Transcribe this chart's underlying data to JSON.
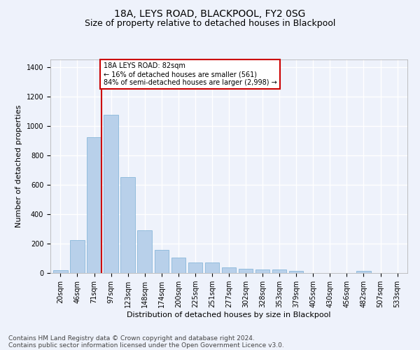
{
  "title": "18A, LEYS ROAD, BLACKPOOL, FY2 0SG",
  "subtitle": "Size of property relative to detached houses in Blackpool",
  "xlabel": "Distribution of detached houses by size in Blackpool",
  "ylabel": "Number of detached properties",
  "footer1": "Contains HM Land Registry data © Crown copyright and database right 2024.",
  "footer2": "Contains public sector information licensed under the Open Government Licence v3.0.",
  "categories": [
    "20sqm",
    "46sqm",
    "71sqm",
    "97sqm",
    "123sqm",
    "148sqm",
    "174sqm",
    "200sqm",
    "225sqm",
    "251sqm",
    "277sqm",
    "302sqm",
    "328sqm",
    "353sqm",
    "379sqm",
    "405sqm",
    "430sqm",
    "456sqm",
    "482sqm",
    "507sqm",
    "533sqm"
  ],
  "values": [
    18,
    225,
    920,
    1075,
    650,
    290,
    158,
    105,
    70,
    70,
    38,
    27,
    22,
    22,
    15,
    0,
    0,
    0,
    12,
    0,
    0
  ],
  "bar_color": "#b8d0ea",
  "bar_edge_color": "#7aafd4",
  "ylim": [
    0,
    1450
  ],
  "yticks": [
    0,
    200,
    400,
    600,
    800,
    1000,
    1200,
    1400
  ],
  "property_line_color": "#cc0000",
  "annotation_text": "18A LEYS ROAD: 82sqm\n← 16% of detached houses are smaller (561)\n84% of semi-detached houses are larger (2,998) →",
  "annotation_box_color": "#cc0000",
  "background_color": "#eef2fb",
  "grid_color": "#ffffff",
  "title_fontsize": 10,
  "subtitle_fontsize": 9,
  "axis_label_fontsize": 8,
  "tick_fontsize": 7,
  "footer_fontsize": 6.5
}
